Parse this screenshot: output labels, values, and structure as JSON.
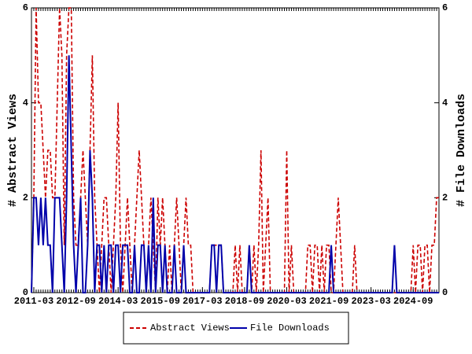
{
  "chart_data": {
    "type": "line",
    "x": [
      "2011-02",
      "2011-03",
      "2011-04",
      "2011-05",
      "2011-06",
      "2011-07",
      "2011-08",
      "2011-09",
      "2011-10",
      "2011-11",
      "2011-12",
      "2012-01",
      "2012-02",
      "2012-03",
      "2012-04",
      "2012-05",
      "2012-06",
      "2012-07",
      "2012-08",
      "2012-09",
      "2012-10",
      "2012-11",
      "2012-12",
      "2013-01",
      "2013-02",
      "2013-03",
      "2013-04",
      "2013-05",
      "2013-06",
      "2013-07",
      "2013-08",
      "2013-09",
      "2013-10",
      "2013-11",
      "2013-12",
      "2014-01",
      "2014-02",
      "2014-03",
      "2014-04",
      "2014-05",
      "2014-06",
      "2014-07",
      "2014-08",
      "2014-09",
      "2014-10",
      "2014-11",
      "2014-12",
      "2015-01",
      "2015-02",
      "2015-03",
      "2015-04",
      "2015-05",
      "2015-06",
      "2015-07",
      "2015-08",
      "2015-09",
      "2015-10",
      "2015-11",
      "2015-12",
      "2016-01",
      "2016-02",
      "2016-03",
      "2016-04",
      "2016-05",
      "2016-06",
      "2016-07",
      "2016-08",
      "2016-09",
      "2016-10",
      "2016-11",
      "2016-12",
      "2017-01",
      "2017-02",
      "2017-03",
      "2017-04",
      "2017-05",
      "2017-06",
      "2017-07",
      "2017-08",
      "2017-09",
      "2017-10",
      "2017-11",
      "2017-12",
      "2018-01",
      "2018-02",
      "2018-03",
      "2018-04",
      "2018-05",
      "2018-06",
      "2018-07",
      "2018-08",
      "2018-09",
      "2018-10",
      "2018-11",
      "2018-12",
      "2019-01",
      "2019-02",
      "2019-03",
      "2019-04",
      "2019-05",
      "2019-06",
      "2019-07",
      "2019-08",
      "2019-09",
      "2019-10",
      "2019-11",
      "2019-12",
      "2020-01",
      "2020-02",
      "2020-03",
      "2020-04",
      "2020-05",
      "2020-06",
      "2020-07",
      "2020-08",
      "2020-09",
      "2020-10",
      "2020-11",
      "2020-12",
      "2021-01",
      "2021-02",
      "2021-03",
      "2021-04",
      "2021-05",
      "2021-06",
      "2021-07",
      "2021-08",
      "2021-09",
      "2021-10",
      "2021-11",
      "2021-12",
      "2022-01",
      "2022-02",
      "2022-03",
      "2022-04",
      "2022-05",
      "2022-06",
      "2022-07",
      "2022-08",
      "2022-09",
      "2022-10",
      "2022-11",
      "2022-12",
      "2023-01",
      "2023-02",
      "2023-03",
      "2023-04",
      "2023-05",
      "2023-06",
      "2023-07",
      "2023-08",
      "2023-09",
      "2023-10",
      "2023-11",
      "2023-12",
      "2024-01",
      "2024-02",
      "2024-03",
      "2024-04",
      "2024-05",
      "2024-06",
      "2024-07",
      "2024-08",
      "2024-09",
      "2024-10",
      "2024-11",
      "2024-12",
      "2025-01",
      "2025-02",
      "2025-03",
      "2025-04",
      "2025-05",
      "2025-06",
      "2025-07",
      "2025-08"
    ],
    "xlim": [
      "2011-02",
      "2025-08"
    ],
    "xticks": [
      "2011-03",
      "2012-09",
      "2014-03",
      "2015-09",
      "2017-03",
      "2018-09",
      "2020-03",
      "2021-09",
      "2023-03",
      "2024-09"
    ],
    "ylabel": "# Abstract Views",
    "y2label": "# File Downloads",
    "ylim": [
      0,
      6
    ],
    "yticks": [
      0,
      2,
      4,
      6
    ],
    "y2lim": [
      0,
      6
    ],
    "y2ticks": [
      0,
      2,
      4,
      6
    ],
    "series": [
      {
        "name": "Abstract Views",
        "color": "#cc0000",
        "dash": true,
        "values": [
          0,
          2,
          6,
          4,
          4,
          3,
          2,
          3,
          3,
          2,
          2,
          4,
          6,
          5,
          1,
          5,
          6,
          6,
          2,
          1,
          1,
          2,
          3,
          2,
          1,
          3,
          5,
          2,
          1,
          0,
          1,
          2,
          2,
          1,
          0,
          1,
          2,
          4,
          1,
          0,
          1,
          2,
          1,
          0,
          1,
          2,
          3,
          2,
          1,
          0,
          1,
          2,
          1,
          0,
          2,
          1,
          2,
          1,
          0,
          1,
          0,
          1,
          2,
          1,
          0,
          1,
          2,
          1,
          1,
          0,
          0,
          0,
          0,
          0,
          0,
          0,
          0,
          1,
          1,
          1,
          1,
          1,
          0,
          0,
          0,
          0,
          0,
          1,
          0,
          1,
          0,
          0,
          0,
          1,
          0,
          1,
          0,
          1,
          3,
          0,
          1,
          2,
          0,
          0,
          0,
          0,
          0,
          0,
          0,
          3,
          0,
          1,
          0,
          0,
          0,
          0,
          0,
          0,
          1,
          1,
          0,
          1,
          1,
          0,
          1,
          0,
          1,
          1,
          0,
          0,
          1,
          2,
          1,
          0,
          0,
          0,
          0,
          0,
          1,
          0,
          0,
          0,
          0,
          0,
          0,
          0,
          0,
          0,
          0,
          0,
          0,
          0,
          0,
          0,
          0,
          0,
          0,
          0,
          0,
          0,
          0,
          0,
          0,
          1,
          0,
          1,
          1,
          0,
          1,
          1,
          0,
          1,
          1,
          2,
          2
        ]
      },
      {
        "name": "File Downloads",
        "color": "#0000aa",
        "dash": false,
        "axis": "y2",
        "values": [
          0,
          2,
          2,
          1,
          2,
          1,
          2,
          1,
          1,
          0,
          2,
          2,
          2,
          1,
          0,
          2,
          5,
          3,
          1,
          0,
          1,
          2,
          0,
          0,
          1,
          3,
          2,
          0,
          1,
          1,
          0,
          1,
          0,
          1,
          1,
          0,
          1,
          1,
          0,
          1,
          1,
          1,
          0,
          0,
          1,
          0,
          0,
          1,
          1,
          0,
          1,
          0,
          2,
          0,
          1,
          1,
          0,
          1,
          0,
          0,
          0,
          1,
          0,
          0,
          0,
          1,
          0,
          0,
          0,
          0,
          0,
          0,
          0,
          0,
          0,
          0,
          0,
          1,
          1,
          0,
          1,
          1,
          0,
          0,
          0,
          0,
          0,
          0,
          0,
          0,
          0,
          0,
          0,
          1,
          0,
          0,
          0,
          0,
          0,
          0,
          0,
          0,
          0,
          0,
          0,
          0,
          0,
          0,
          0,
          0,
          0,
          0,
          0,
          0,
          0,
          0,
          0,
          0,
          0,
          0,
          0,
          0,
          0,
          0,
          0,
          0,
          0,
          0,
          1,
          0,
          0,
          0,
          0,
          0,
          0,
          0,
          0,
          0,
          0,
          0,
          0,
          0,
          0,
          0,
          0,
          0,
          0,
          0,
          0,
          0,
          0,
          0,
          0,
          0,
          0,
          1,
          0,
          0,
          0,
          0,
          0,
          0,
          0,
          0,
          0,
          0,
          0,
          0,
          0,
          0,
          0,
          0,
          0,
          0,
          0
        ]
      }
    ]
  }
}
